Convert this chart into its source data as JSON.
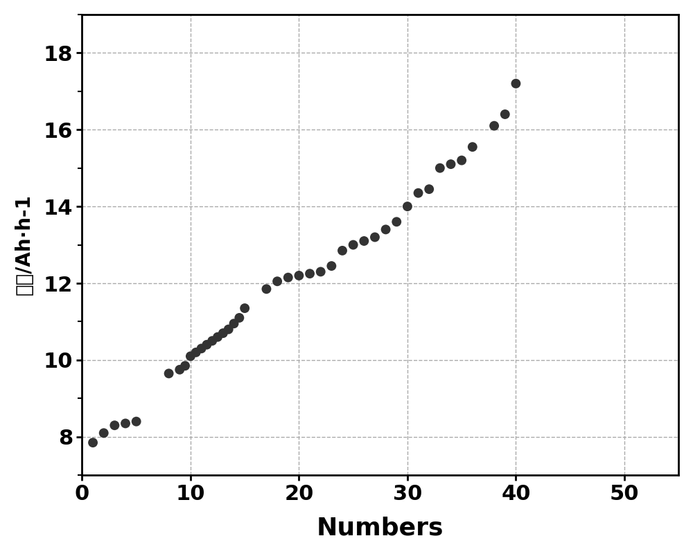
{
  "x": [
    1,
    2,
    3,
    4,
    5,
    8,
    9,
    9.5,
    10,
    10.5,
    11,
    11.5,
    12,
    12.5,
    13,
    13.5,
    14,
    14.5,
    15,
    17,
    18,
    19,
    20,
    21,
    22,
    23,
    24,
    25,
    26,
    27,
    28,
    29,
    30,
    31,
    32,
    33,
    34,
    35,
    36,
    38,
    39,
    40
  ],
  "y": [
    7.85,
    8.1,
    8.3,
    8.35,
    8.4,
    9.65,
    9.75,
    9.85,
    10.1,
    10.2,
    10.3,
    10.4,
    10.5,
    10.6,
    10.7,
    10.8,
    10.95,
    11.1,
    11.35,
    11.85,
    12.05,
    12.15,
    12.2,
    12.25,
    12.3,
    12.45,
    12.85,
    13.0,
    13.1,
    13.2,
    13.4,
    13.6,
    14.0,
    14.35,
    14.45,
    15.0,
    15.1,
    15.2,
    15.55,
    16.1,
    16.4,
    17.2
  ],
  "xlabel": "Numbers",
  "ylabel_chinese": "容量/Ah·h",
  "ylabel_suffix": "-1",
  "xlim": [
    0,
    55
  ],
  "ylim": [
    7,
    19
  ],
  "xticks": [
    0,
    10,
    20,
    30,
    40,
    50
  ],
  "yticks": [
    8,
    10,
    12,
    14,
    16,
    18
  ],
  "marker_color": "#333333",
  "marker_size": 100,
  "grid_color": "#aaaaaa",
  "background_color": "#ffffff",
  "xlabel_fontsize": 26,
  "ylabel_fontsize": 20,
  "tick_fontsize": 22
}
